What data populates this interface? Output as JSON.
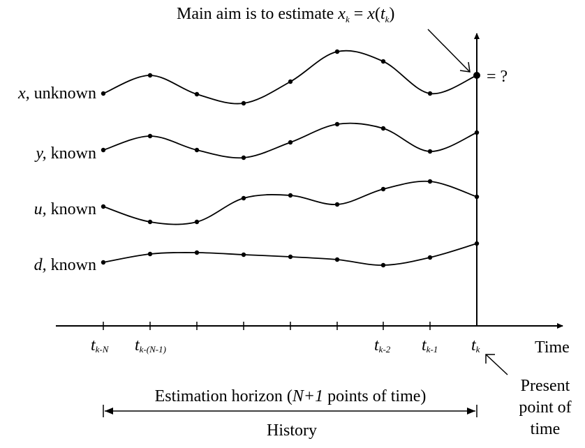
{
  "title": {
    "prefix": "Main aim is to estimate ",
    "x1": "x",
    "x1_sub": "k",
    "eq": " = ",
    "x2": "x",
    "paren_open": "(",
    "t": "t",
    "t_sub": "k",
    "paren_close": ")"
  },
  "unknown_mark": "= ?",
  "signals": [
    {
      "var": "x,",
      "desc": " unknown"
    },
    {
      "var": "y,",
      "desc": " known"
    },
    {
      "var": "u,",
      "desc": " known"
    },
    {
      "var": "d,",
      "desc": " known"
    }
  ],
  "ticks": [
    {
      "t": "t",
      "sub": "k-N"
    },
    {
      "t": "t",
      "sub": "k-(N-1)"
    },
    {
      "t": "t",
      "sub": "k-2"
    },
    {
      "t": "t",
      "sub": "k-1"
    },
    {
      "t": "t",
      "sub": "k"
    }
  ],
  "time_label": "Time",
  "present_label": [
    "Present",
    "point of",
    "time"
  ],
  "horizon": {
    "prefix": "Estimation horizon (",
    "n": "N+1",
    "suffix": " points of time)"
  },
  "history_label": "History"
}
